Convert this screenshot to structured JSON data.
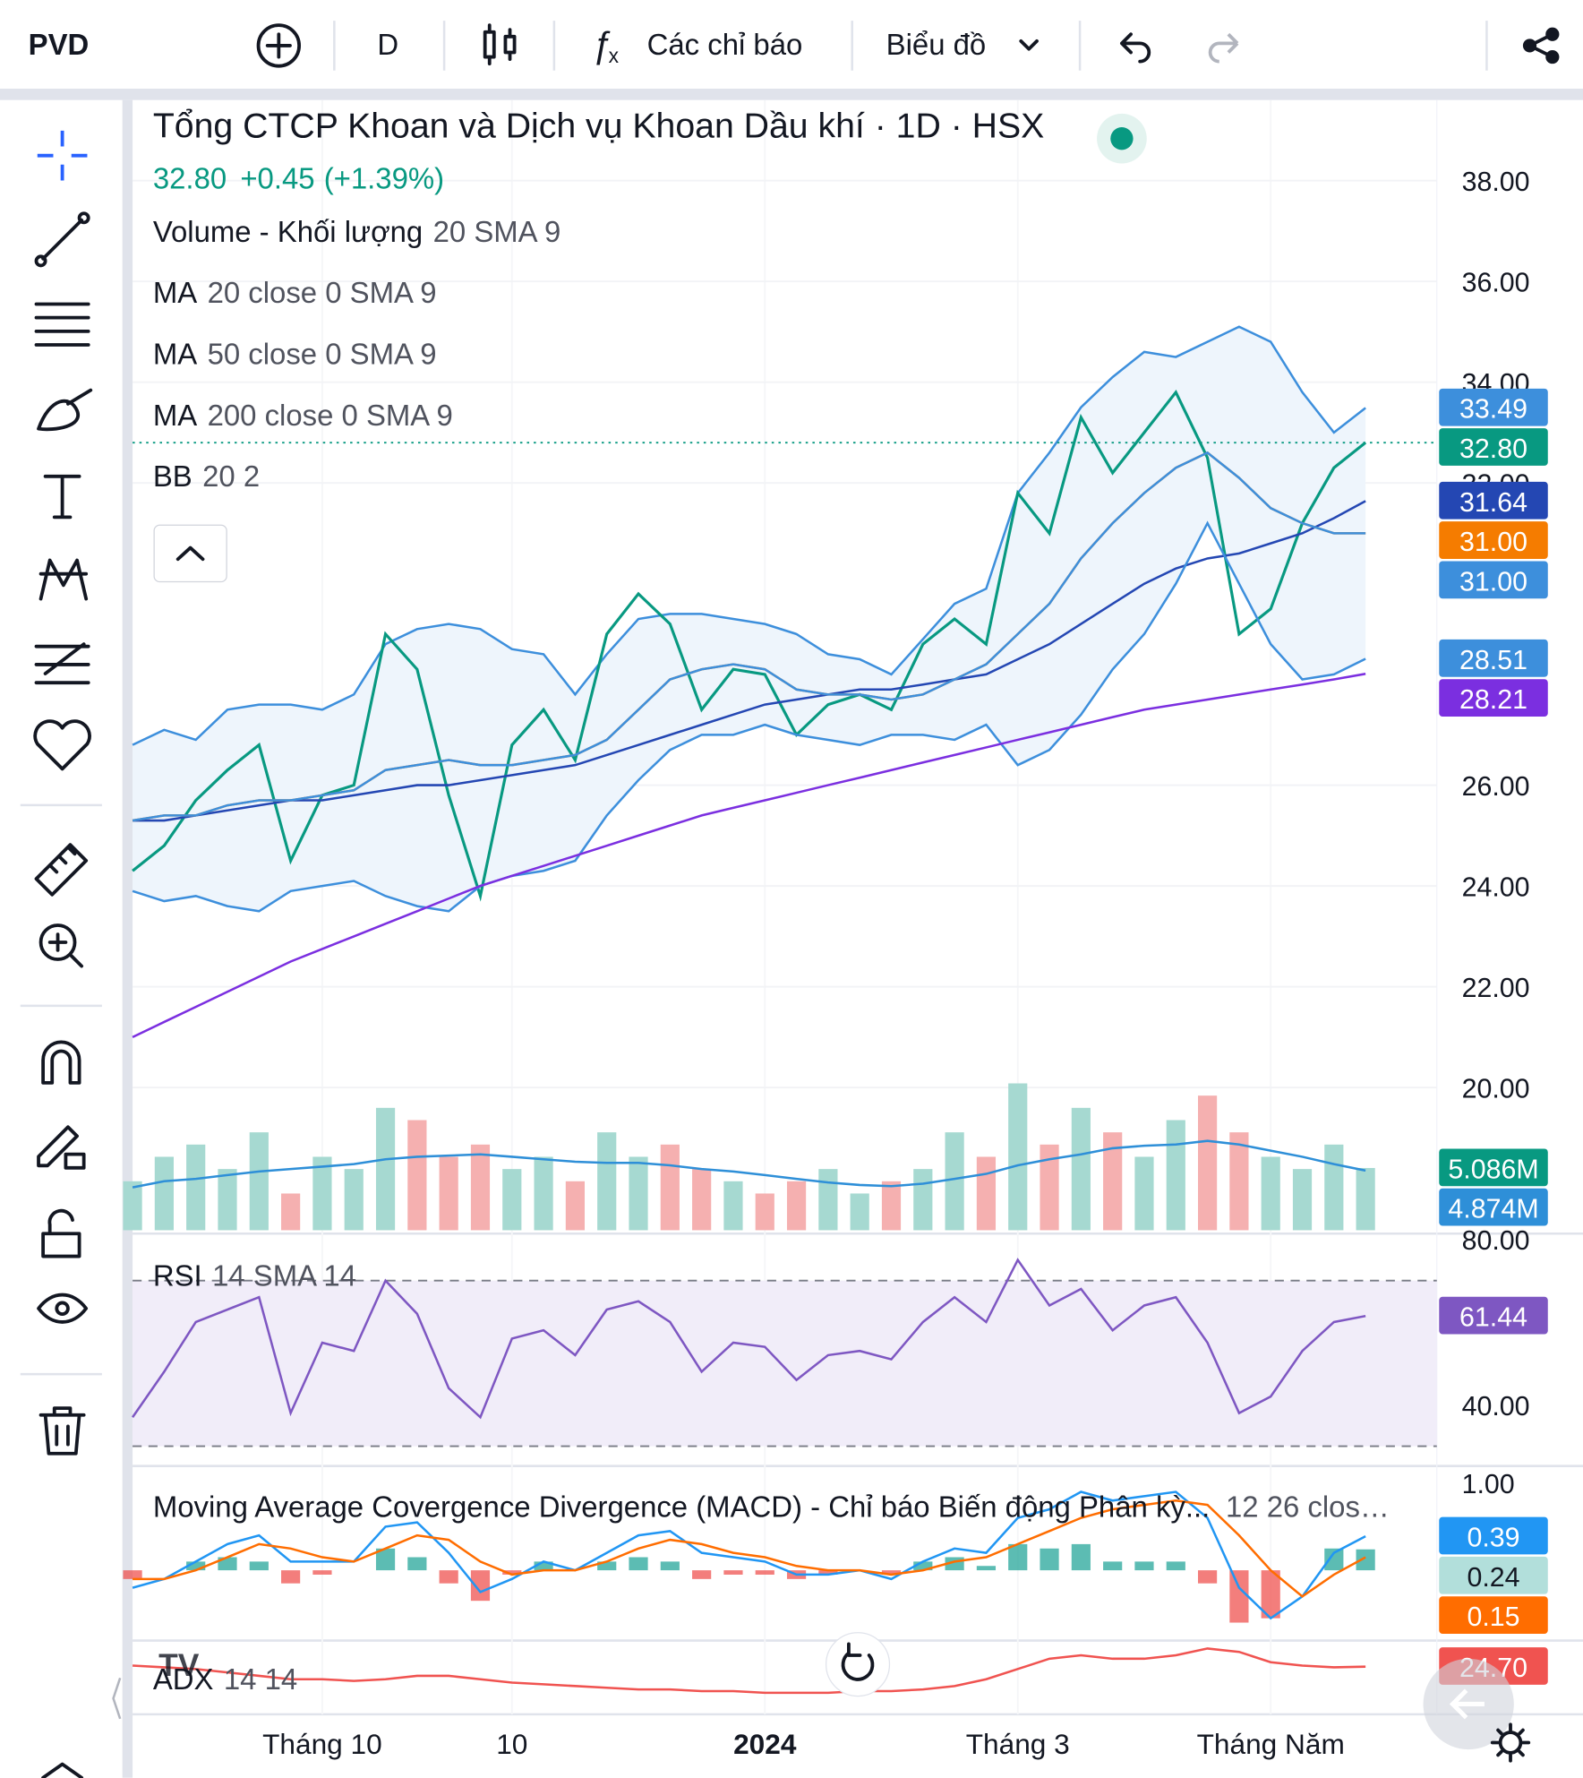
{
  "toolbar": {
    "symbol": "PVD",
    "interval": "D",
    "indicators": "Các chỉ báo",
    "chart_type": "Biểu đồ"
  },
  "chart_data": [
    {
      "type": "line",
      "title": "Tổng CTCP Khoan và Dịch vụ Khoan Dầu khí · 1D · HSX",
      "price": "32.80",
      "change": "+0.45",
      "change_pct": "(+1.39%)",
      "indicators": [
        {
          "name": "Volume - Khối lượng",
          "params": "20 SMA 9"
        },
        {
          "name": "MA",
          "params": "20 close 0 SMA 9"
        },
        {
          "name": "MA",
          "params": "50 close 0 SMA 9"
        },
        {
          "name": "MA",
          "params": "200 close 0 SMA 9"
        },
        {
          "name": "BB",
          "params": "20 2"
        }
      ],
      "categories": [
        null,
        null,
        null,
        null,
        null,
        null,
        "Tháng 10",
        null,
        null,
        null,
        null,
        null,
        "10",
        null,
        null,
        null,
        null,
        null,
        null,
        null,
        "2024",
        null,
        null,
        null,
        null,
        null,
        null,
        null,
        "Tháng 3",
        null,
        null,
        null,
        null,
        null,
        null,
        null,
        "Tháng Năm",
        null,
        null,
        null
      ],
      "ylim": [
        17.1,
        39.6
      ],
      "yticks": [
        {
          "value": 38,
          "label": "38.00"
        },
        {
          "value": 36,
          "label": "36.00"
        },
        {
          "value": 34,
          "label": "34.00"
        },
        {
          "value": 32,
          "label": "32.00"
        },
        {
          "value": 26,
          "label": "26.00"
        },
        {
          "value": 24,
          "label": "24.00"
        },
        {
          "value": 22,
          "label": "22.00"
        },
        {
          "value": 20,
          "label": "20.00"
        }
      ],
      "grid": true,
      "band_fill": "#eef5fc",
      "series": [
        {
          "color": "#3d8fdc",
          "last_label": "33.49",
          "values": [
            26.8,
            27.1,
            26.9,
            27.5,
            27.6,
            27.6,
            27.5,
            27.8,
            28.8,
            29.1,
            29.2,
            29.1,
            28.7,
            28.6,
            27.8,
            28.6,
            29.3,
            29.4,
            29.4,
            29.3,
            29.2,
            29.0,
            28.6,
            28.5,
            28.2,
            28.9,
            29.6,
            29.9,
            31.8,
            32.6,
            33.5,
            34.1,
            34.6,
            34.5,
            34.8,
            35.1,
            34.8,
            33.8,
            33.0,
            33.49
          ]
        },
        {
          "color": "#089981",
          "last_label": "32.80",
          "values": [
            24.3,
            24.8,
            25.7,
            26.3,
            26.8,
            24.5,
            25.8,
            26.0,
            29.0,
            28.3,
            25.8,
            23.8,
            26.8,
            27.5,
            26.5,
            29.0,
            29.8,
            29.2,
            27.5,
            28.3,
            28.2,
            27.0,
            27.6,
            27.8,
            27.5,
            28.8,
            29.3,
            28.8,
            31.8,
            31.0,
            33.3,
            32.2,
            33.0,
            33.8,
            32.5,
            29.0,
            29.5,
            31.2,
            32.3,
            32.8
          ]
        },
        {
          "color": "#2447b3",
          "last_label": "31.64",
          "values": [
            25.3,
            25.3,
            25.4,
            25.5,
            25.6,
            25.7,
            25.7,
            25.8,
            25.9,
            26.0,
            26.0,
            26.1,
            26.2,
            26.3,
            26.4,
            26.6,
            26.8,
            27.0,
            27.2,
            27.4,
            27.6,
            27.7,
            27.8,
            27.9,
            27.9,
            28.0,
            28.1,
            28.2,
            28.5,
            28.8,
            29.2,
            29.6,
            30.0,
            30.3,
            30.5,
            30.6,
            30.8,
            31.0,
            31.3,
            31.64
          ]
        },
        {
          "color": "#f57c00",
          "last_label": "31.00",
          "values": [
            25.3,
            25.4,
            25.4,
            25.6,
            25.7,
            25.7,
            25.8,
            25.9,
            26.3,
            26.4,
            26.5,
            26.4,
            26.4,
            26.5,
            26.6,
            26.9,
            27.5,
            28.1,
            28.3,
            28.4,
            28.3,
            27.9,
            27.8,
            27.8,
            27.7,
            27.8,
            28.1,
            28.4,
            29.0,
            29.6,
            30.5,
            31.2,
            31.8,
            32.3,
            32.6,
            32.1,
            31.5,
            31.2,
            31.0,
            31.0
          ]
        },
        {
          "color": "#3d8fdc",
          "last_label": "31.00",
          "values": [
            25.3,
            25.4,
            25.4,
            25.6,
            25.7,
            25.7,
            25.8,
            25.9,
            26.3,
            26.4,
            26.5,
            26.4,
            26.4,
            26.5,
            26.6,
            26.9,
            27.5,
            28.1,
            28.3,
            28.4,
            28.3,
            27.9,
            27.8,
            27.8,
            27.7,
            27.8,
            28.1,
            28.4,
            29.0,
            29.6,
            30.5,
            31.2,
            31.8,
            32.3,
            32.6,
            32.1,
            31.5,
            31.2,
            31.0,
            31.0
          ]
        },
        {
          "color": "#3d8fdc",
          "last_label": "28.51",
          "values": [
            23.9,
            23.7,
            23.8,
            23.6,
            23.5,
            23.9,
            24.0,
            24.1,
            23.8,
            23.6,
            23.5,
            24.0,
            24.2,
            24.3,
            24.5,
            25.4,
            26.1,
            26.7,
            27.0,
            27.0,
            27.2,
            27.0,
            26.9,
            26.8,
            27.0,
            27.0,
            26.9,
            27.2,
            26.4,
            26.7,
            27.4,
            28.3,
            29.0,
            30.0,
            31.2,
            30.0,
            28.8,
            28.1,
            28.2,
            28.51
          ]
        },
        {
          "color": "#7b2fe0",
          "last_label": "28.21",
          "values": [
            21.0,
            21.3,
            21.6,
            21.9,
            22.2,
            22.5,
            22.75,
            23.0,
            23.25,
            23.5,
            23.75,
            24.0,
            24.2,
            24.4,
            24.6,
            24.8,
            25.0,
            25.2,
            25.4,
            25.55,
            25.7,
            25.85,
            26.0,
            26.15,
            26.3,
            26.45,
            26.6,
            26.75,
            26.9,
            27.05,
            27.2,
            27.35,
            27.5,
            27.6,
            27.7,
            27.8,
            27.9,
            28.0,
            28.1,
            28.21
          ]
        }
      ]
    },
    {
      "type": "bar",
      "ylim": [
        0,
        92
      ],
      "up_color": "#a6d9d1",
      "down_color": "#f5b0b0",
      "series": [
        {
          "color": "#089981",
          "last_label": "5.086M",
          "values": [
            4,
            6,
            7,
            5,
            8,
            3,
            6,
            5,
            10,
            9,
            6,
            7,
            5,
            6,
            4,
            8,
            6,
            7,
            5,
            4,
            3,
            4,
            5,
            3,
            4,
            5,
            8,
            6,
            12,
            7,
            10,
            8,
            6,
            9,
            11,
            8,
            6,
            5,
            7,
            5.086
          ]
        },
        {
          "color": "#2e8fd8",
          "last_label": "4.874M",
          "values": [
            3.5,
            4,
            4.2,
            4.5,
            4.8,
            5,
            5.2,
            5.4,
            5.8,
            6.0,
            6.1,
            6.2,
            6.0,
            5.8,
            5.6,
            5.5,
            5.5,
            5.3,
            5.0,
            4.8,
            4.5,
            4.2,
            3.9,
            3.7,
            3.6,
            3.8,
            4.2,
            4.6,
            5.3,
            5.8,
            6.2,
            6.7,
            6.9,
            7.0,
            7.3,
            7.0,
            6.5,
            6.0,
            5.4,
            4.874
          ]
        }
      ]
    },
    {
      "type": "line",
      "title": "RSI",
      "params": "14 SMA 14",
      "ylim": [
        25.5,
        80.8
      ],
      "yticks": [
        {
          "value": 80,
          "label": "80.00"
        },
        {
          "value": 40,
          "label": "40.00"
        }
      ],
      "levels": [
        70,
        30
      ],
      "band_fill": "#f1edf9",
      "series": [
        {
          "color": "#7e57c2",
          "last_label": "61.44",
          "values": [
            37,
            48,
            60,
            63,
            66,
            38,
            55,
            53,
            70,
            62,
            44,
            37,
            56,
            58,
            52,
            63,
            65,
            60,
            48,
            55,
            54,
            46,
            52,
            53,
            51,
            60,
            66,
            60,
            75,
            64,
            68,
            58,
            64,
            66,
            55,
            38,
            42,
            53,
            60,
            61.44
          ]
        }
      ]
    },
    {
      "type": "macd",
      "title": "Moving Average Covergence Divergence (MACD) - Chỉ báo Biến động Phân kỳ...",
      "params": "12 26 clos…",
      "ylim": [
        -0.78,
        1.17
      ],
      "yticks": [
        {
          "value": 1,
          "label": "1.00"
        }
      ],
      "histogram": {
        "color": "#b2dfdb",
        "label_color": "#131722",
        "last_label": "0.24",
        "up_color": "#26a69a",
        "down_color": "#ef5350",
        "values": [
          -0.1,
          0,
          0.1,
          0.15,
          0.1,
          -0.15,
          -0.05,
          0,
          0.25,
          0.15,
          -0.15,
          -0.35,
          -0.05,
          0.1,
          0,
          0.1,
          0.15,
          0.1,
          -0.1,
          -0.05,
          -0.05,
          -0.1,
          -0.05,
          0,
          -0.05,
          0.1,
          0.15,
          0.05,
          0.3,
          0.25,
          0.3,
          0.1,
          0.1,
          0.1,
          -0.15,
          -0.6,
          -0.55,
          0,
          0.25,
          0.24
        ]
      },
      "series": [
        {
          "color": "#2196f3",
          "last_label": "0.39",
          "values": [
            -0.2,
            -0.1,
            0.1,
            0.3,
            0.4,
            0.1,
            0.1,
            0.1,
            0.5,
            0.55,
            0.2,
            -0.25,
            -0.1,
            0.1,
            0.0,
            0.2,
            0.4,
            0.45,
            0.2,
            0.15,
            0.1,
            -0.05,
            -0.05,
            0.0,
            -0.1,
            0.1,
            0.25,
            0.2,
            0.6,
            0.7,
            0.9,
            0.8,
            0.85,
            0.9,
            0.6,
            -0.2,
            -0.55,
            -0.3,
            0.2,
            0.39
          ]
        },
        {
          "color": "#ff6d00",
          "last_label": "0.15",
          "values": [
            -0.1,
            -0.1,
            0.0,
            0.15,
            0.3,
            0.25,
            0.15,
            0.1,
            0.25,
            0.4,
            0.35,
            0.1,
            -0.05,
            0.0,
            0.0,
            0.1,
            0.25,
            0.35,
            0.3,
            0.2,
            0.15,
            0.05,
            0.0,
            0.0,
            -0.05,
            0.0,
            0.1,
            0.15,
            0.3,
            0.45,
            0.6,
            0.7,
            0.75,
            0.8,
            0.75,
            0.4,
            0.0,
            -0.3,
            -0.05,
            0.15
          ]
        }
      ]
    },
    {
      "type": "line",
      "title": "ADX",
      "params": "14 14",
      "ylim": [
        11.4,
        32
      ],
      "series": [
        {
          "color": "#f05350",
          "last_label": "24.70",
          "values": [
            25,
            24.5,
            24,
            23,
            22,
            21,
            21,
            20.5,
            21,
            22,
            22,
            21,
            20,
            19.5,
            19,
            18.5,
            18,
            18,
            17.5,
            17.5,
            17,
            17,
            17,
            17.5,
            17.5,
            18,
            19,
            21,
            24,
            27,
            28,
            27,
            27,
            28,
            30,
            29,
            26,
            25,
            24.5,
            24.7
          ]
        }
      ]
    }
  ]
}
